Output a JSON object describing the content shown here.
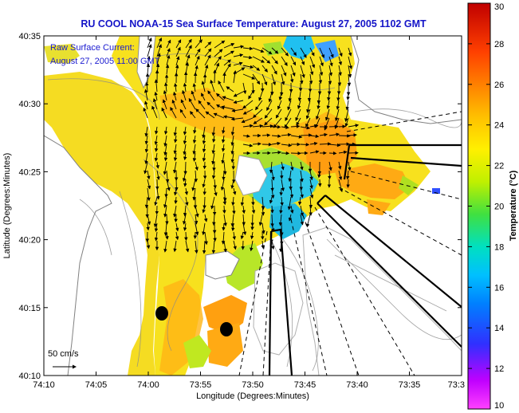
{
  "title": "RU COOL  NOAA-15  Sea Surface Temperature:  August 27, 2005 1102 GMT",
  "overlay": {
    "line1": "Raw Surface Current:",
    "line2": "August 27, 2005 11:00 GMT",
    "scale_label": "50 cm/s"
  },
  "axes": {
    "xlabel": "Longitude (Degrees:Minutes)",
    "ylabel": "Latitude (Degrees:Minutes)",
    "xticks": [
      "74:10",
      "74:05",
      "74:00",
      "73:55",
      "73:50",
      "73:45",
      "73:40",
      "73:35",
      "73:3"
    ],
    "yticks": [
      "40:35",
      "40:30",
      "40:25",
      "40:20",
      "40:15",
      "40:10"
    ]
  },
  "colorbar": {
    "label": "Temperature (°C)",
    "ticks": [
      "30",
      "28",
      "26",
      "24",
      "22",
      "20",
      "18",
      "16",
      "14",
      "12",
      "10"
    ],
    "min": 10,
    "max": 30
  },
  "colors": {
    "title": "#1414c8",
    "land": "#ffffff",
    "warm": "#ff8c00",
    "mid": "#f0e020",
    "cool": "#20c0e0"
  }
}
